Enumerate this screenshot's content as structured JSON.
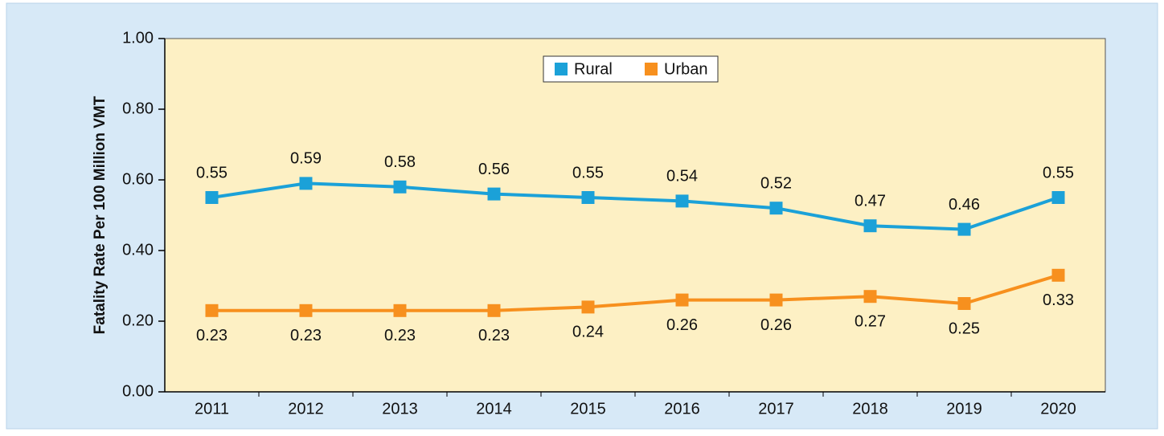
{
  "chart_data": {
    "type": "line",
    "categories": [
      "2011",
      "2012",
      "2013",
      "2014",
      "2015",
      "2016",
      "2017",
      "2018",
      "2019",
      "2020"
    ],
    "y_label": "Fatality Rate Per 100 Million VMT",
    "series": [
      {
        "name": "Rural",
        "color": "#1ba1d8",
        "values": [
          0.55,
          0.59,
          0.58,
          0.56,
          0.55,
          0.54,
          0.52,
          0.47,
          0.46,
          0.55
        ]
      },
      {
        "name": "Urban",
        "color": "#f7901e",
        "values": [
          0.23,
          0.23,
          0.23,
          0.23,
          0.24,
          0.26,
          0.26,
          0.27,
          0.25,
          0.33
        ]
      }
    ],
    "ylim": [
      0,
      1
    ],
    "yticks": [
      {
        "value": 0,
        "label": "0.00"
      },
      {
        "value": 0.2,
        "label": "0.20"
      },
      {
        "value": 0.4,
        "label": "0.40"
      },
      {
        "value": 0.6,
        "label": "0.60"
      },
      {
        "value": 0.8,
        "label": "0.80"
      },
      {
        "value": 1,
        "label": "1.00"
      }
    ],
    "legend": "top"
  }
}
